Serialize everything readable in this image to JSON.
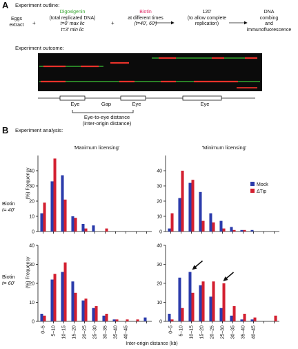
{
  "panelA": {
    "letter": "A",
    "outline_title": "Experiment outline:",
    "steps": [
      {
        "lines": [
          "Eggs",
          "extract"
        ]
      },
      {
        "lines": [
          "Digoxigenin",
          "(total replicated DNA)",
          "t=0' max lic",
          "t=3' min lic"
        ]
      },
      {
        "lines": [
          "Biotin",
          "at different times",
          "(t=40', 60')"
        ]
      },
      {
        "lines": [
          "120'",
          "(to allow complete",
          "replication)"
        ]
      },
      {
        "lines": [
          "DNA",
          "combing",
          "and",
          "immunofluorescence"
        ]
      }
    ],
    "plus": "+",
    "outcome_title": "Experiment outcome:",
    "schematic": {
      "eye": "Eye",
      "gap": "Gap",
      "distance_line1": "Eye-to-eye distance",
      "distance_line2": "(inter-origin distance)"
    }
  },
  "panelB": {
    "letter": "B",
    "title": "Experiment analysis:",
    "col_max": "'Maximum licensing'",
    "col_min": "'Minimum licensing'",
    "row1_line1": "Biotin",
    "row1_line2": "t= 40'",
    "row2_line1": "Biotin",
    "row2_line2": "t= 60'",
    "ylabel": "(%) Frequency",
    "xlabel": "Inter-origin distance (kb)",
    "legend": [
      {
        "name": "Mock",
        "color": "#2b3bab"
      },
      {
        "name": "ΔTip",
        "color": "#d32030"
      }
    ]
  },
  "chart_data": [
    {
      "type": "bar",
      "panel": "Maximum licensing, Biotin t=40'",
      "categories": [
        "0–5",
        "5–10",
        "10–15",
        "15–20",
        "20–25",
        "25–30",
        "30–35",
        "35–40",
        "40–45",
        "45–50",
        "50–55"
      ],
      "ylim": [
        0,
        50
      ],
      "yticks": [
        0,
        10,
        20,
        30,
        40
      ],
      "series": [
        {
          "name": "Mock",
          "values": [
            12,
            33,
            37,
            10,
            5,
            4,
            0,
            0,
            0,
            0,
            0
          ]
        },
        {
          "name": "ΔTip",
          "values": [
            19,
            48,
            21,
            9,
            2,
            0,
            2,
            0,
            0,
            0,
            0
          ]
        }
      ]
    },
    {
      "type": "bar",
      "panel": "Minimum licensing, Biotin t=40'",
      "categories": [
        "0–5",
        "5–10",
        "10–15",
        "15–20",
        "20–25",
        "25–30",
        "30–35",
        "35–40",
        "40–45",
        "45–50",
        "50–55"
      ],
      "ylim": [
        0,
        50
      ],
      "yticks": [
        0,
        10,
        20,
        30,
        40
      ],
      "series": [
        {
          "name": "Mock",
          "values": [
            2,
            22,
            32,
            26,
            12,
            7,
            3,
            1,
            1,
            0,
            0
          ]
        },
        {
          "name": "ΔTip",
          "values": [
            12,
            40,
            34,
            7,
            6,
            2,
            1,
            1,
            0,
            0,
            0
          ]
        }
      ]
    },
    {
      "type": "bar",
      "panel": "Maximum licensing, Biotin t=60'",
      "categories": [
        "0–5",
        "5–10",
        "10–15",
        "15–20",
        "20–25",
        "25–30",
        "30–35",
        "35–40",
        "40–45",
        "45–50",
        "50–55"
      ],
      "ylim": [
        0,
        40
      ],
      "yticks": [
        0,
        10,
        20,
        30,
        40
      ],
      "series": [
        {
          "name": "Mock",
          "values": [
            4,
            22,
            26,
            21,
            11,
            7,
            3,
            1,
            0,
            0,
            2
          ]
        },
        {
          "name": "ΔTip",
          "values": [
            3,
            25,
            31,
            15,
            12,
            8,
            4,
            1,
            1,
            1,
            0
          ]
        }
      ]
    },
    {
      "type": "bar",
      "panel": "Minimum licensing, Biotin t=60'",
      "categories": [
        "0–5",
        "5–10",
        "10–15",
        "15–20",
        "20–25",
        "25–30",
        "30–35",
        "35–40",
        "40–45",
        "45–50",
        "50–55"
      ],
      "ylim": [
        0,
        40
      ],
      "yticks": [
        0,
        10,
        20,
        30,
        40
      ],
      "series": [
        {
          "name": "Mock",
          "values": [
            4,
            23,
            26,
            19,
            13,
            7,
            3,
            1,
            1,
            0,
            0
          ]
        },
        {
          "name": "ΔTip",
          "values": [
            1,
            7,
            15,
            21,
            21,
            20,
            8,
            4,
            2,
            0,
            3
          ]
        }
      ],
      "arrows_at": [
        "10–15",
        "25–30"
      ]
    }
  ]
}
